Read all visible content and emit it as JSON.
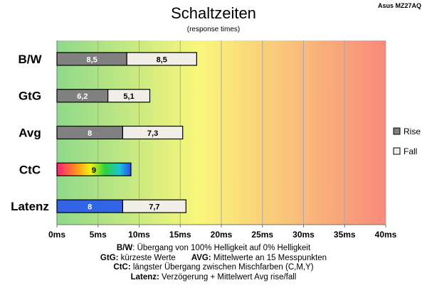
{
  "header": {
    "title": "Schaltzeiten",
    "subtitle": "(response times)",
    "model": "Asus MZ27AQ"
  },
  "chart_data": {
    "type": "bar",
    "orientation": "horizontal",
    "stacked": true,
    "title": "Schaltzeiten",
    "subtitle": "(response times)",
    "categories": [
      "B/W",
      "GtG",
      "Avg",
      "CtC",
      "Latenz"
    ],
    "series": [
      {
        "name": "Rise",
        "values": [
          8.5,
          6.2,
          8,
          9,
          8
        ],
        "labels": [
          "8,5",
          "6,2",
          "8",
          "9",
          "8"
        ],
        "color": "#808080"
      },
      {
        "name": "Fall",
        "values": [
          8.5,
          5.1,
          7.3,
          null,
          7.7
        ],
        "labels": [
          "8,5",
          "5,1",
          "7,3",
          null,
          "7,7"
        ],
        "color": "#f0eee6"
      }
    ],
    "special_fills": {
      "CtC": "rainbow",
      "Latenz": "#3264e6"
    },
    "xlim": [
      0,
      40
    ],
    "xticks": [
      0,
      5,
      10,
      15,
      20,
      25,
      30,
      35,
      40
    ],
    "xtick_labels": [
      "0ms",
      "5ms",
      "10ms",
      "15ms",
      "20ms",
      "25ms",
      "30ms",
      "35ms",
      "40ms"
    ],
    "background_gradient": [
      "#8ed98a",
      "#f9f77a",
      "#f98a7a"
    ],
    "grid": true,
    "legend_position": "right"
  },
  "notes": {
    "line1_key": "B/W",
    "line1_text": ":  Übergang von 100% Helligkeit auf 0% Helligkeit",
    "line2_key_a": "GtG:",
    "line2_text_a": " kürzeste  Werte",
    "line2_key_b": "AVG:",
    "line2_text_b": " Mittelwerte  an 15 Messpunkten",
    "line3_key": "CtC:",
    "line3_text": " längster Übergang  zwischen Mischfarben  (C,M,Y)",
    "line4_key": "Latenz:",
    "line4_text": " Verzögerung  + Mittelwert  Avg rise/fall"
  }
}
